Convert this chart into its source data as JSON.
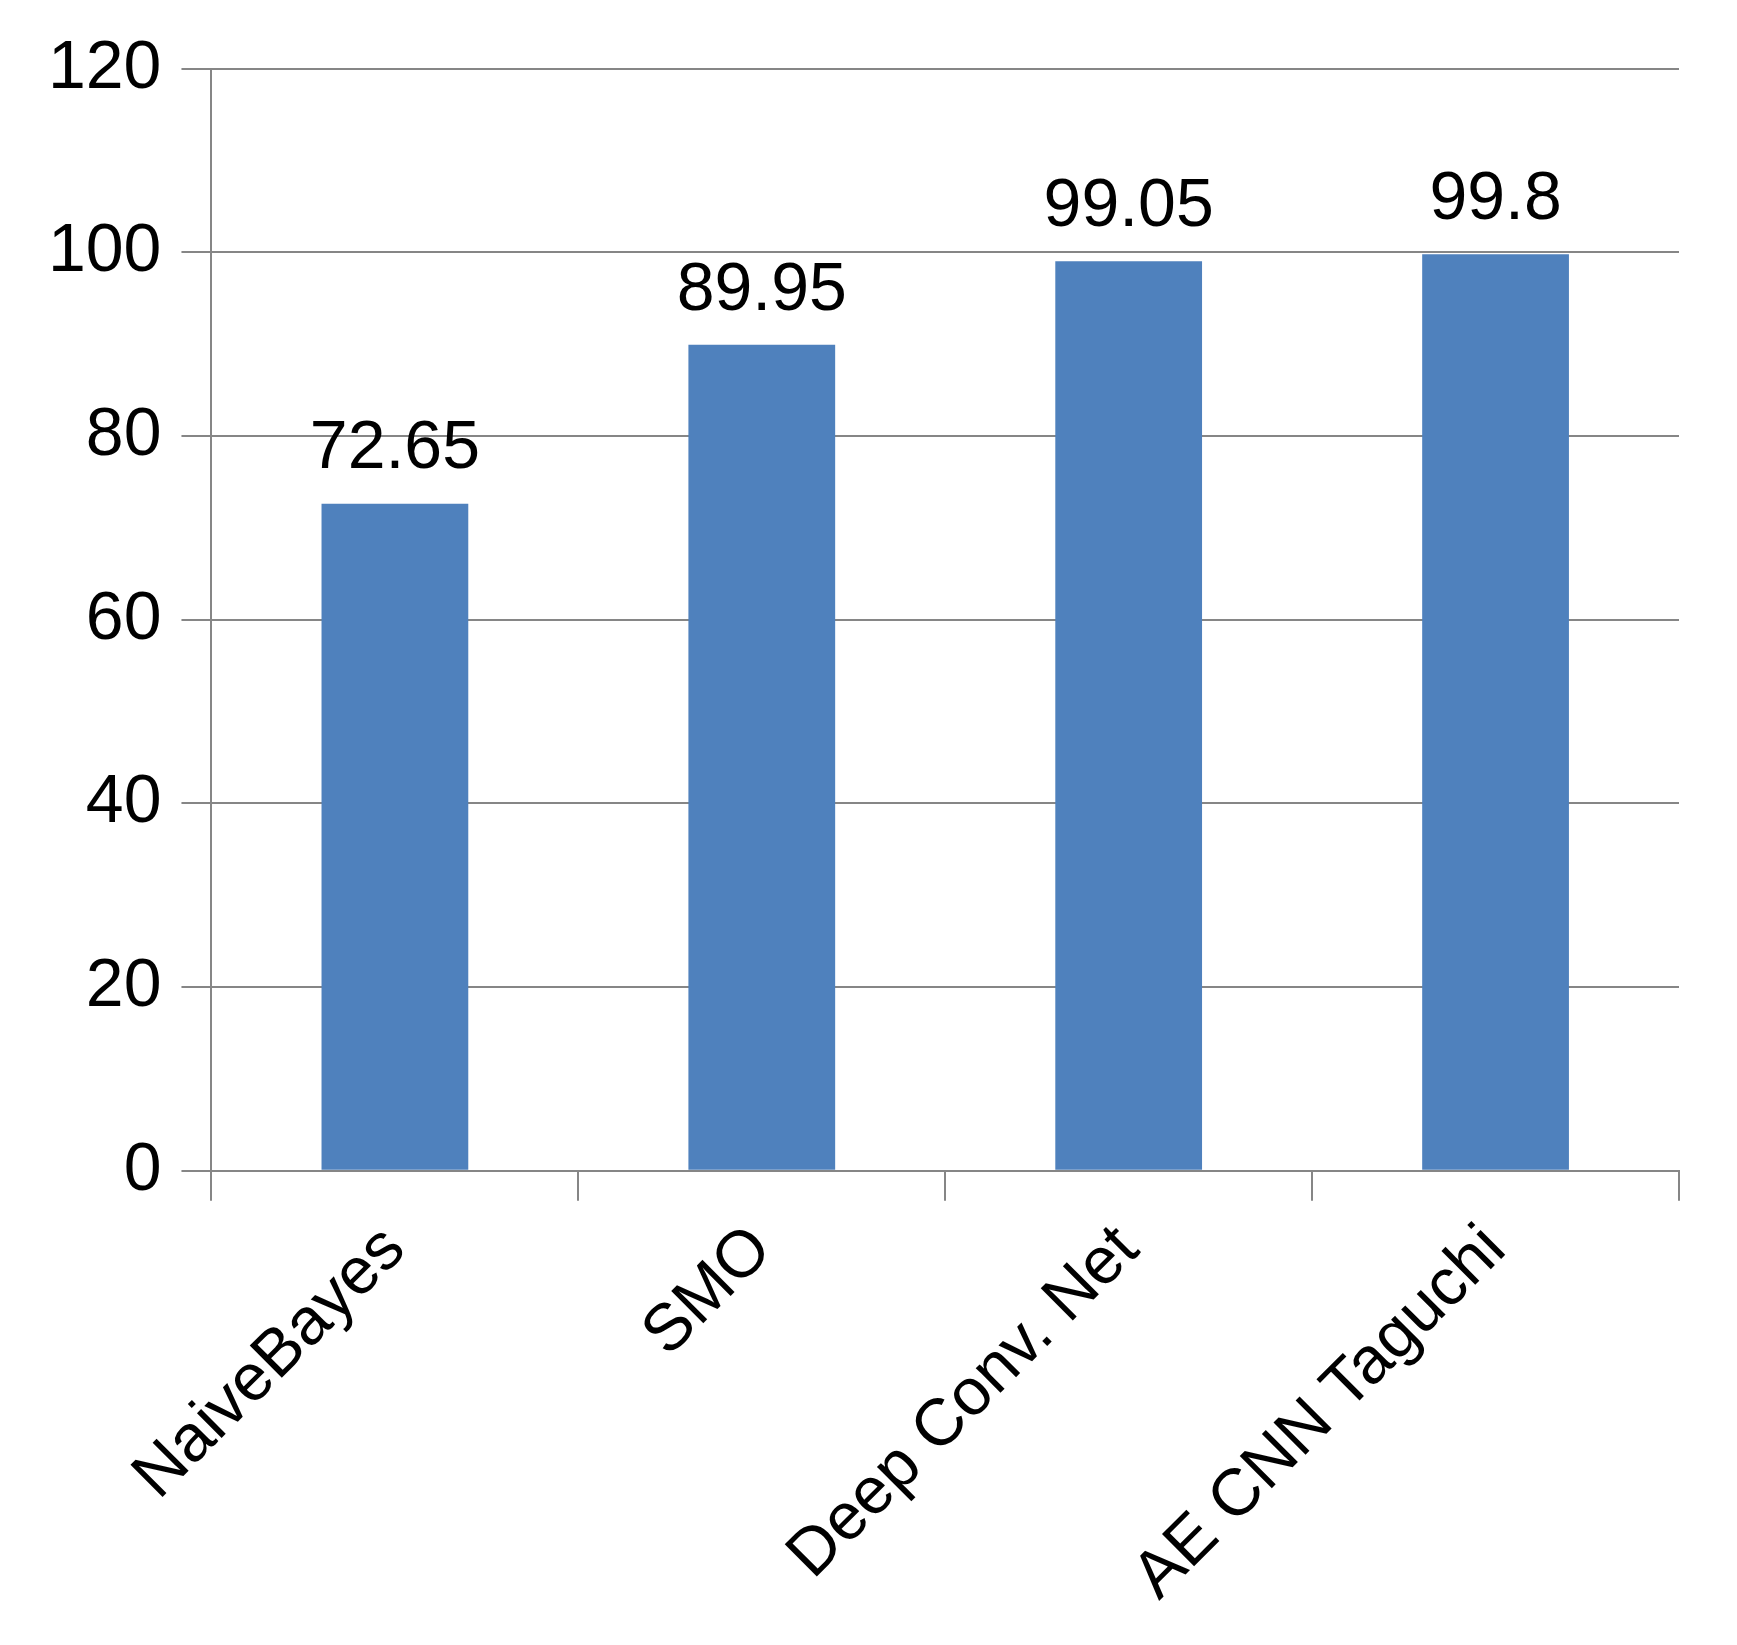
{
  "chart_data": {
    "type": "bar",
    "categories": [
      "NaiveBayes",
      "SMO",
      "Deep Conv. Net",
      "AE CNN Taguchi"
    ],
    "values": [
      72.65,
      89.95,
      99.05,
      99.8
    ],
    "color": "#4f81bd",
    "ylim": [
      0,
      120
    ],
    "yticks": [
      0,
      20,
      40,
      60,
      80,
      100,
      120
    ],
    "grid": "y",
    "legend": false,
    "data_labels": true
  }
}
